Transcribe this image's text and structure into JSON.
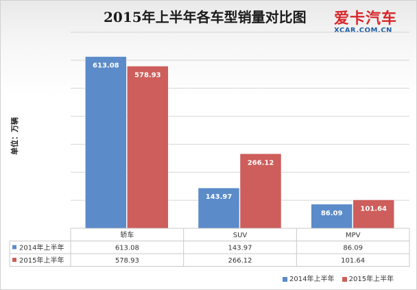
{
  "title": "2015年上半年各车型销量对比图",
  "logo": {
    "cn": "爱卡汽车",
    "en": "XCAR.COM.CN"
  },
  "colors": {
    "series_2014": "#5b8bc9",
    "series_2015": "#cd5e5b"
  },
  "chart_data": {
    "type": "bar",
    "title": "2015年上半年各车型销量对比图",
    "ylabel": "单位：万辆",
    "xlabel": "",
    "categories": [
      "轿车",
      "SUV",
      "MPV"
    ],
    "series": [
      {
        "name": "2014年上半年",
        "values": [
          613.08,
          143.97,
          86.09
        ]
      },
      {
        "name": "2015年上半年",
        "values": [
          578.93,
          266.12,
          101.64
        ]
      }
    ],
    "ylim": [
      0,
      700
    ],
    "yticks": [
      0,
      100,
      200,
      300,
      400,
      500,
      600,
      700
    ],
    "grid": true,
    "data_table": true,
    "legend_position": "bottom-right"
  }
}
